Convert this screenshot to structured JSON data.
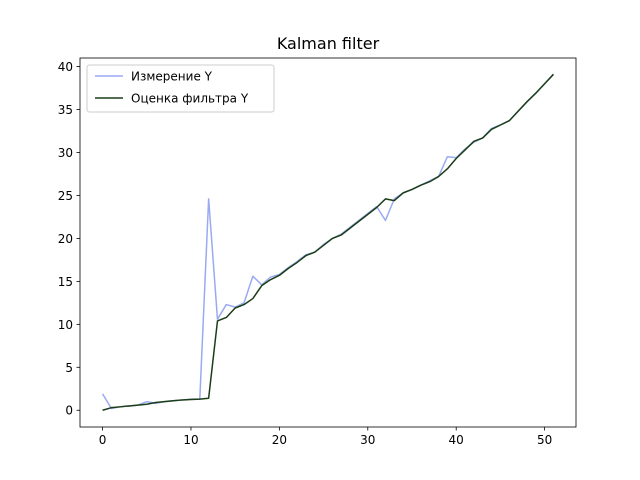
{
  "chart_data": {
    "type": "line",
    "title": "Kalman filter",
    "xlabel": "",
    "ylabel": "",
    "xlim": [
      -2.55,
      53.55
    ],
    "ylim": [
      -1.95,
      41.0
    ],
    "xticks": [
      0,
      10,
      20,
      30,
      40,
      50
    ],
    "yticks": [
      0,
      5,
      10,
      15,
      20,
      25,
      30,
      35,
      40
    ],
    "grid": false,
    "legend_position": "top-left",
    "series": [
      {
        "name": "Измерение Y",
        "color": "#9aaaf0",
        "x": [
          0,
          1,
          2,
          3,
          4,
          5,
          6,
          7,
          8,
          9,
          10,
          11,
          12,
          13,
          14,
          15,
          16,
          17,
          18,
          19,
          20,
          21,
          22,
          23,
          24,
          25,
          26,
          27,
          28,
          29,
          30,
          31,
          32,
          33,
          34,
          35,
          36,
          37,
          38,
          39,
          40,
          41,
          42,
          43,
          44,
          45,
          46,
          47,
          48,
          49,
          50,
          51
        ],
        "values": [
          1.9,
          0.2,
          0.4,
          0.5,
          0.6,
          1.0,
          0.8,
          1.0,
          1.1,
          1.2,
          1.3,
          1.3,
          24.6,
          10.6,
          12.3,
          12.0,
          12.5,
          15.6,
          14.6,
          15.5,
          15.8,
          16.6,
          17.3,
          18.1,
          18.4,
          19.3,
          20.0,
          20.5,
          21.3,
          22.1,
          22.9,
          23.7,
          22.1,
          24.6,
          25.3,
          25.7,
          26.2,
          26.7,
          27.2,
          29.5,
          29.4,
          30.4,
          31.2,
          31.7,
          32.8,
          33.2,
          33.7,
          34.8,
          35.9,
          36.9,
          38.0,
          39.1
        ]
      },
      {
        "name": "Оценка фильтра Y",
        "color": "#1a3d17",
        "x": [
          0,
          1,
          2,
          3,
          4,
          5,
          6,
          7,
          8,
          9,
          10,
          11,
          12,
          13,
          14,
          15,
          16,
          17,
          18,
          19,
          20,
          21,
          22,
          23,
          24,
          25,
          26,
          27,
          28,
          29,
          30,
          31,
          32,
          33,
          34,
          35,
          36,
          37,
          38,
          39,
          40,
          41,
          42,
          43,
          44,
          45,
          46,
          47,
          48,
          49,
          50,
          51
        ],
        "values": [
          0.0,
          0.3,
          0.4,
          0.5,
          0.6,
          0.7,
          0.9,
          1.0,
          1.1,
          1.2,
          1.25,
          1.3,
          1.4,
          10.4,
          10.8,
          11.9,
          12.3,
          13.0,
          14.5,
          15.2,
          15.7,
          16.5,
          17.2,
          18.0,
          18.4,
          19.2,
          20.0,
          20.4,
          21.2,
          22.0,
          22.8,
          23.6,
          24.6,
          24.4,
          25.3,
          25.7,
          26.2,
          26.6,
          27.2,
          28.1,
          29.3,
          30.3,
          31.3,
          31.7,
          32.7,
          33.2,
          33.7,
          34.8,
          35.9,
          36.9,
          38.0,
          39.1
        ]
      }
    ]
  }
}
